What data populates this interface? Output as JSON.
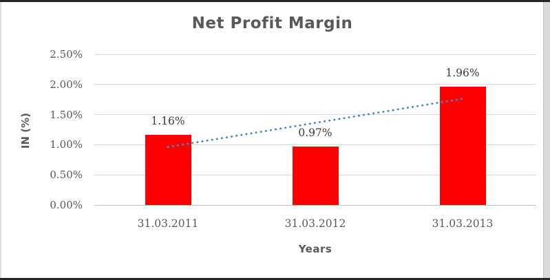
{
  "chart_data": {
    "type": "bar",
    "title": "Net Profit Margin",
    "xlabel": "Years",
    "ylabel": "IN (%)",
    "categories": [
      "31.03.2011",
      "31.03.2012",
      "31.03.2013"
    ],
    "series": [
      {
        "name": "Net Profit Margin",
        "values": [
          1.16,
          0.97,
          1.96
        ]
      }
    ],
    "data_labels": [
      "1.16%",
      "0.97%",
      "1.96%"
    ],
    "ylim": [
      0,
      2.5
    ],
    "yticks": [
      {
        "value": 0.0,
        "label": "0.00%"
      },
      {
        "value": 0.5,
        "label": "0.50%"
      },
      {
        "value": 1.0,
        "label": "1.00%"
      },
      {
        "value": 1.5,
        "label": "1.50%"
      },
      {
        "value": 2.0,
        "label": "2.00%"
      },
      {
        "value": 2.5,
        "label": "2.50%"
      }
    ],
    "grid": true,
    "legend": "none",
    "bar_color": "#ff0000",
    "trendline": {
      "style": "dotted",
      "color": "#4a87c9",
      "start": {
        "category_index": 0,
        "value": 0.963
      },
      "end": {
        "category_index": 2,
        "value": 1.763
      }
    }
  },
  "colors": {
    "title_text": "#595959",
    "axis_text": "#595959",
    "data_label_text": "#3b3b3b",
    "gridline": "#d9d9d9",
    "baseline": "#c3c3c3",
    "frame_border": "#262626",
    "outer_margin": "#d9d9d9",
    "chart_background": "#ffffff"
  }
}
